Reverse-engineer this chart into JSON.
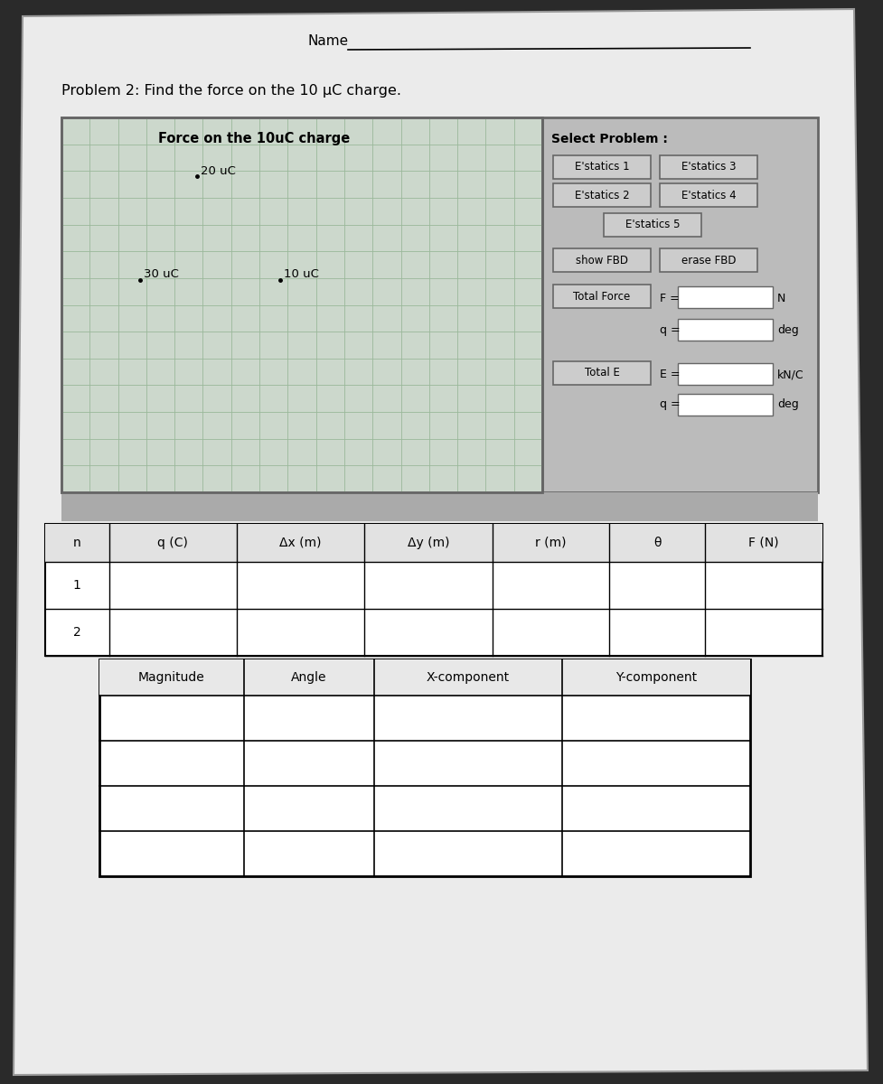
{
  "title": "Problem 2: Find the force on the 10 μC charge.",
  "name_label": "Name",
  "page_bg": "#2a2a2a",
  "paper_bg": "#eeeeee",
  "grid_bg": "#ccd8cc",
  "grid_line_color": "#aabfaa",
  "plot_title": "Force on the 10uC charge",
  "charge_20uc": "20 uC",
  "charge_30uc": "30 uC",
  "charge_10uc": "10 uC",
  "select_problem_label": "Select Problem :",
  "total_force_label": "Total Force",
  "total_e_label": "Total E",
  "F_label": "F =",
  "N_label": "N",
  "q_label": "q =",
  "deg_label": "deg",
  "E_label": "E =",
  "kNC_label": "kN/C",
  "table1_headers": [
    "n",
    "q (C)",
    "Δx (m)",
    "Δy (m)",
    "r (m)",
    "θ",
    "F (N)"
  ],
  "table1_rows": 2,
  "table2_headers": [
    "Magnitude",
    "Angle",
    "X-component",
    "Y-component"
  ],
  "table2_rows": 4,
  "panel_bg": "#bbbbbb",
  "btn_bg": "#cccccc",
  "btn_edge": "#666666",
  "input_bg": "#ffffff"
}
